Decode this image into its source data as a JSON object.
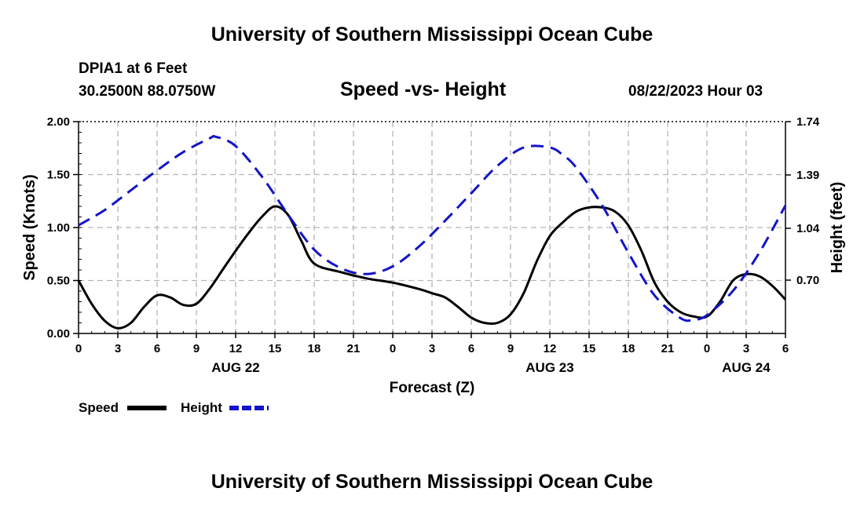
{
  "header": {
    "title": "University of Southern Mississippi Ocean Cube",
    "station": "DPIA1 at 6 Feet",
    "coords": "30.2500N  88.0750W",
    "subtitle": "Speed -vs- Height",
    "datetime": "08/22/2023 Hour 03"
  },
  "footer": {
    "title": "University of Southern Mississippi Ocean Cube"
  },
  "chart_data": {
    "type": "line",
    "title": "Speed -vs- Height",
    "xlabel": "Forecast (Z)",
    "ylabel": "Speed (Knots)",
    "y2label": "Height (feet)",
    "xlim": [
      0,
      54
    ],
    "ylim": [
      0,
      2.0
    ],
    "y2lim": [
      0.35,
      1.74
    ],
    "grid": true,
    "x_tick_values": [
      0,
      3,
      6,
      9,
      12,
      15,
      18,
      21,
      24,
      27,
      30,
      33,
      36,
      39,
      42,
      45,
      48,
      51,
      54
    ],
    "x_tick_labels": [
      "0",
      "3",
      "6",
      "9",
      "12",
      "15",
      "18",
      "21",
      "0",
      "3",
      "6",
      "9",
      "12",
      "15",
      "18",
      "21",
      "0",
      "3",
      "6"
    ],
    "date_labels": [
      {
        "x": 12,
        "label": "AUG 22"
      },
      {
        "x": 36,
        "label": "AUG 23"
      },
      {
        "x": 51,
        "label": "AUG 24"
      }
    ],
    "y_ticks": [
      "0.00",
      "0.50",
      "1.00",
      "1.50",
      "2.00"
    ],
    "y2_ticks": [
      "0.70",
      "1.04",
      "1.39",
      "1.74"
    ],
    "series": [
      {
        "name": "Speed",
        "axis": "left",
        "color": "#000000",
        "style": "solid",
        "x": [
          0,
          1,
          2,
          3,
          4,
          5,
          6,
          7,
          8,
          9,
          10,
          11,
          12,
          13,
          14,
          15,
          16,
          17,
          18,
          20,
          22,
          24,
          26,
          27,
          28,
          29,
          30,
          31,
          32,
          33,
          34,
          35,
          36,
          37,
          38,
          39,
          40,
          41,
          42,
          43,
          44,
          45,
          46,
          47,
          48,
          49,
          50,
          51,
          52,
          53,
          54
        ],
        "values": [
          0.5,
          0.28,
          0.12,
          0.05,
          0.1,
          0.25,
          0.36,
          0.34,
          0.27,
          0.28,
          0.42,
          0.6,
          0.78,
          0.95,
          1.1,
          1.2,
          1.12,
          0.88,
          0.66,
          0.58,
          0.52,
          0.48,
          0.42,
          0.38,
          0.34,
          0.25,
          0.15,
          0.1,
          0.1,
          0.18,
          0.38,
          0.68,
          0.92,
          1.05,
          1.15,
          1.19,
          1.19,
          1.15,
          1.02,
          0.78,
          0.48,
          0.3,
          0.2,
          0.16,
          0.16,
          0.3,
          0.5,
          0.56,
          0.54,
          0.45,
          0.32
        ]
      },
      {
        "name": "Height",
        "axis": "right",
        "color": "#1414c8",
        "style": "dashed",
        "x": [
          0,
          2,
          4,
          6,
          8,
          10,
          10.5,
          12,
          14,
          16,
          18,
          20,
          22,
          24,
          26,
          28,
          30,
          32,
          34,
          36,
          37,
          38,
          40,
          42,
          44,
          46,
          47,
          48,
          50,
          52,
          54
        ],
        "values": [
          1.06,
          1.16,
          1.29,
          1.42,
          1.54,
          1.63,
          1.64,
          1.58,
          1.38,
          1.13,
          0.9,
          0.78,
          0.74,
          0.79,
          0.92,
          1.09,
          1.27,
          1.45,
          1.57,
          1.57,
          1.52,
          1.44,
          1.19,
          0.88,
          0.6,
          0.45,
          0.44,
          0.47,
          0.63,
          0.88,
          1.19
        ]
      }
    ]
  }
}
